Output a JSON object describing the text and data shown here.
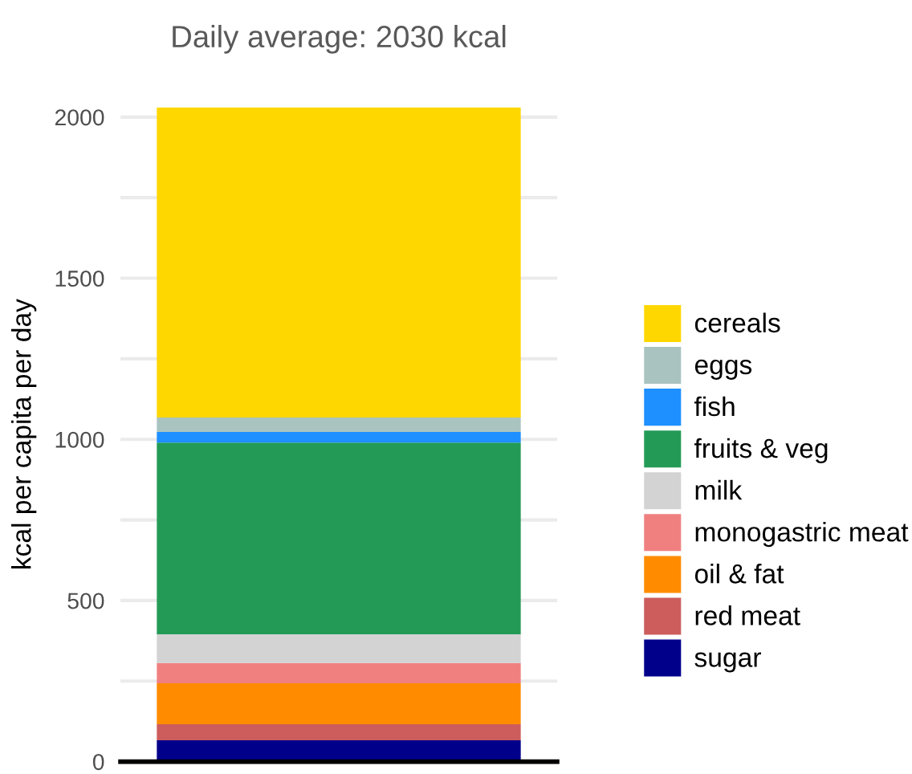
{
  "chart_data": {
    "type": "bar",
    "title": "Daily average: 2030 kcal",
    "ylabel": "kcal per capita per day",
    "categories": [
      null
    ],
    "stacked": true,
    "series": [
      {
        "name": "sugar",
        "color": "#00008b",
        "values": [
          66
        ]
      },
      {
        "name": "red meat",
        "color": "#cd5c5c",
        "values": [
          50
        ]
      },
      {
        "name": "oil & fat",
        "color": "#ff8c00",
        "values": [
          127
        ]
      },
      {
        "name": "monogastric meat",
        "color": "#f08080",
        "values": [
          63
        ]
      },
      {
        "name": "milk",
        "color": "#d3d3d3",
        "values": [
          89
        ]
      },
      {
        "name": "fruits & veg",
        "color": "#239b56",
        "values": [
          595
        ]
      },
      {
        "name": "fish",
        "color": "#1e90ff",
        "values": [
          33
        ]
      },
      {
        "name": "eggs",
        "color": "#a9c4c0",
        "values": [
          45
        ]
      },
      {
        "name": "cereals",
        "color": "#ffd700",
        "values": [
          962
        ]
      }
    ],
    "ylim": [
      0,
      2030
    ],
    "yticks": [
      0,
      {
        "value": 250,
        "label": null
      },
      500,
      {
        "value": 750,
        "label": null
      },
      1000,
      {
        "value": 1250,
        "label": null
      },
      1500,
      {
        "value": 1750,
        "label": null
      },
      2000
    ],
    "grid": "y",
    "legend": "right"
  }
}
